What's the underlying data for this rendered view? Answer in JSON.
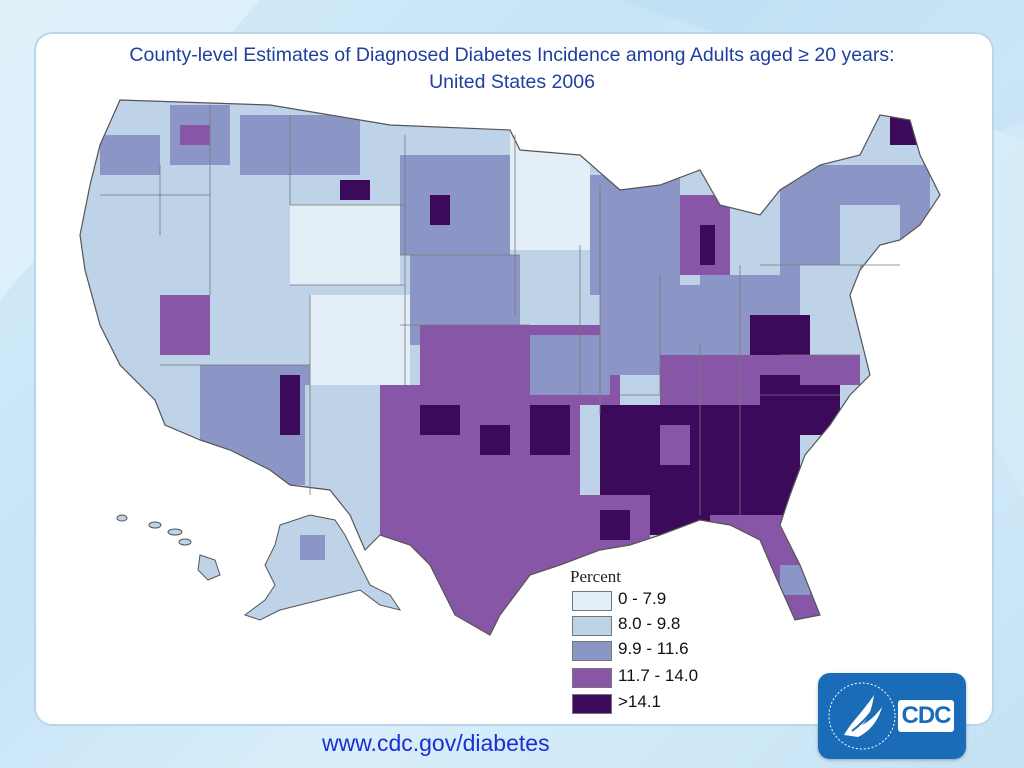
{
  "slide": {
    "title_line1": "County-level Estimates of Diagnosed Diabetes Incidence among Adults aged ≥ 20 years:",
    "title_line2": "United States 2006",
    "footer_link": "www.cdc.gov/diabetes"
  },
  "legend": {
    "title": "Percent",
    "items": [
      {
        "label": "0 - 7.9",
        "color": "#e3eef6"
      },
      {
        "label": "8.0 - 9.8",
        "color": "#bed2e8"
      },
      {
        "label": "9.9 - 11.6",
        "color": "#8c96c6"
      },
      {
        "label": "11.7 - 14.0",
        "color": "#8856a7"
      },
      {
        "label": ">14.1",
        "color": "#3b0a5a"
      }
    ]
  },
  "logo": {
    "text": "CDC",
    "color": "#1a6cb8"
  },
  "colors": {
    "title": "#1f3fa0",
    "state_border": "#555555"
  }
}
